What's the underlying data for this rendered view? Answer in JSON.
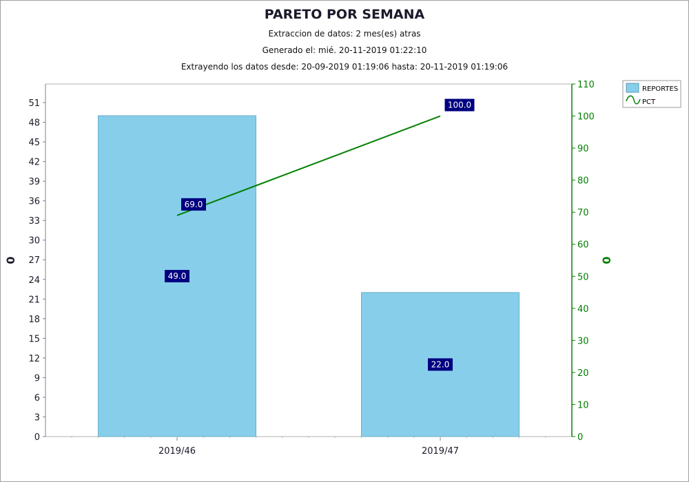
{
  "chart_data": {
    "type": "bar",
    "title": "PARETO POR SEMANA",
    "subtitles": [
      "Extraccion de datos: 2 mes(es) atras",
      "Generado el: mié. 20-11-2019 01:22:10",
      "Extrayendo los datos desde: 20-09-2019 01:19:06 hasta: 20-11-2019 01:19:06"
    ],
    "categories": [
      "2019/46",
      "2019/47"
    ],
    "series": [
      {
        "name": "REPORTES",
        "kind": "bar",
        "axis": "left",
        "values": [
          49,
          22
        ],
        "labels": [
          "49.0",
          "22.0"
        ],
        "color": "#87ceeb"
      },
      {
        "name": "PCT",
        "kind": "line",
        "axis": "right",
        "values": [
          69,
          100
        ],
        "labels": [
          "69.0",
          "100.0"
        ],
        "color": "#008000"
      }
    ],
    "ylabel_left": "0",
    "ylabel_right": "0",
    "ylim_left": [
      0,
      51
    ],
    "yticks_left": [
      "0",
      "3",
      "6",
      "9",
      "12",
      "15",
      "18",
      "21",
      "24",
      "27",
      "30",
      "33",
      "36",
      "39",
      "42",
      "45",
      "48",
      "51"
    ],
    "ylim_right": [
      0,
      110
    ],
    "yticks_right": [
      "0",
      "10",
      "20",
      "30",
      "40",
      "50",
      "60",
      "70",
      "80",
      "90",
      "100",
      "110"
    ],
    "legend_position": "top-right",
    "grid": false,
    "label_box_color": "#000080",
    "right_axis_color": "#008000"
  }
}
